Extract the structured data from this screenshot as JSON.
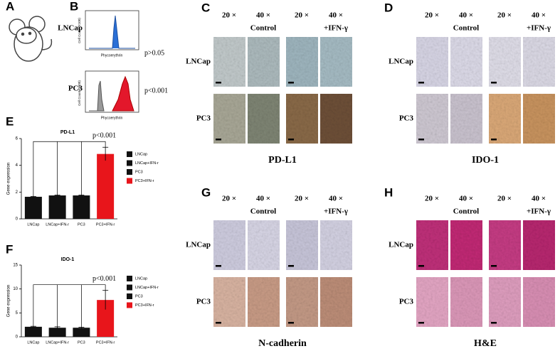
{
  "panel_labels": [
    "A",
    "B",
    "C",
    "D",
    "E",
    "F",
    "G",
    "H"
  ],
  "flow": {
    "rows": [
      {
        "label": "LNCap",
        "p": "p>0.05"
      },
      {
        "label": "PC3",
        "p": "p<0.001"
      }
    ],
    "x_label": "Phycoerythrin",
    "y_label": "Cell Count (X100)"
  },
  "ihc": [
    {
      "stain": "PD-L1",
      "magnifications": [
        "20 ×",
        "40 ×",
        "20 ×",
        "40 ×"
      ],
      "conditions": [
        "Control",
        "+IFN-γ"
      ],
      "rows": [
        "LNCap",
        "PC3"
      ]
    },
    {
      "stain": "IDO-1",
      "magnifications": [
        "20 ×",
        "40 ×",
        "20 ×",
        "40 ×"
      ],
      "conditions": [
        "Control",
        "+IFN-γ"
      ],
      "rows": [
        "LNCap",
        "PC3"
      ]
    },
    {
      "stain": "N-cadherin",
      "magnifications": [
        "20 ×",
        "40 ×",
        "20 ×",
        "40 ×"
      ],
      "conditions": [
        "Control",
        "+IFN-γ"
      ],
      "rows": [
        "LNCap",
        "PC3"
      ]
    },
    {
      "stain": "H&E",
      "magnifications": [
        "20 ×",
        "40 ×",
        "20 ×",
        "40 ×"
      ],
      "conditions": [
        "Control",
        "+IFN-γ"
      ],
      "rows": [
        "LNCap",
        "PC3"
      ]
    }
  ],
  "chart_data": [
    {
      "type": "bar",
      "title": "PD-L1",
      "y_label": "Gene expression",
      "categories": [
        "LNCap",
        "LNCap+IFN-r",
        "PC3",
        "PC3+IFN-r"
      ],
      "values": [
        1.65,
        1.75,
        1.75,
        4.85
      ],
      "errors": [
        0.03,
        0.03,
        0.03,
        0.5
      ],
      "colors": [
        "#111111",
        "#111111",
        "#111111",
        "#e8151b"
      ],
      "ylim": [
        0,
        6
      ],
      "yticks": [
        0,
        2,
        4,
        6
      ],
      "annotation": "p<0.001"
    },
    {
      "type": "bar",
      "title": "IDO-1",
      "y_label": "Gene expression",
      "categories": [
        "LNCap",
        "LNCap+IFN-r",
        "PC3",
        "PC3+IFN-r"
      ],
      "values": [
        2.1,
        1.9,
        1.9,
        7.7
      ],
      "errors": [
        0.1,
        0.2,
        0.1,
        2
      ],
      "colors": [
        "#111111",
        "#111111",
        "#111111",
        "#e8151b"
      ],
      "ylim": [
        0,
        15
      ],
      "yticks": [
        0,
        5,
        10,
        15
      ],
      "annotation": "p<0.001"
    }
  ]
}
